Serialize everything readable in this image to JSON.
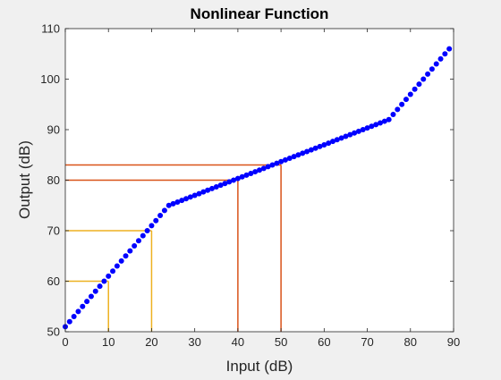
{
  "chart_data": {
    "type": "scatter",
    "title": "Nonlinear Function",
    "xlabel": "Input (dB)",
    "ylabel": "Output (dB)",
    "xlim": [
      0,
      90
    ],
    "ylim": [
      50,
      110
    ],
    "xticks": [
      0,
      10,
      20,
      30,
      40,
      50,
      60,
      70,
      80,
      90
    ],
    "yticks": [
      50,
      60,
      70,
      80,
      90,
      100,
      110
    ],
    "grid": false,
    "series": [
      {
        "color": "#0000ff",
        "x": [
          0,
          1,
          2,
          3,
          4,
          5,
          6,
          7,
          8,
          9,
          10,
          11,
          12,
          13,
          14,
          15,
          16,
          17,
          18,
          19,
          20,
          21,
          22,
          23,
          24,
          25,
          26,
          27,
          28,
          29,
          30,
          31,
          32,
          33,
          34,
          35,
          36,
          37,
          38,
          39,
          40,
          41,
          42,
          43,
          44,
          45,
          46,
          47,
          48,
          49,
          50,
          51,
          52,
          53,
          54,
          55,
          56,
          57,
          58,
          59,
          60,
          61,
          62,
          63,
          64,
          65,
          66,
          67,
          68,
          69,
          70,
          71,
          72,
          73,
          74,
          75,
          76,
          77,
          78,
          79,
          80,
          81,
          82,
          83,
          84,
          85,
          86,
          87,
          88,
          89
        ],
        "y": [
          51,
          52,
          53,
          54,
          55,
          56,
          57,
          58,
          59,
          60,
          61,
          62,
          63,
          64,
          65,
          66,
          67,
          68,
          69,
          70,
          71,
          72,
          73,
          74,
          75,
          75.33,
          75.67,
          76,
          76.33,
          76.67,
          77,
          77.33,
          77.67,
          78,
          78.33,
          78.67,
          79,
          79.33,
          79.67,
          80,
          80.33,
          80.67,
          81,
          81.33,
          81.67,
          82,
          82.33,
          82.67,
          83,
          83.33,
          83.67,
          84,
          84.33,
          84.67,
          85,
          85.33,
          85.67,
          86,
          86.33,
          86.67,
          87,
          87.33,
          87.67,
          88,
          88.33,
          88.67,
          89,
          89.33,
          89.67,
          90,
          90.33,
          90.67,
          91,
          91.33,
          91.67,
          92,
          93,
          94,
          95,
          96,
          97,
          98,
          99,
          100,
          101,
          102,
          103,
          104,
          105,
          106
        ]
      }
    ],
    "reference_lines": [
      {
        "x": 10,
        "y": 60,
        "color": "#edb120"
      },
      {
        "x": 20,
        "y": 70,
        "color": "#edb120"
      },
      {
        "x": 40,
        "y": 80,
        "color": "#d95319"
      },
      {
        "x": 50,
        "y": 83,
        "color": "#d95319"
      }
    ]
  }
}
